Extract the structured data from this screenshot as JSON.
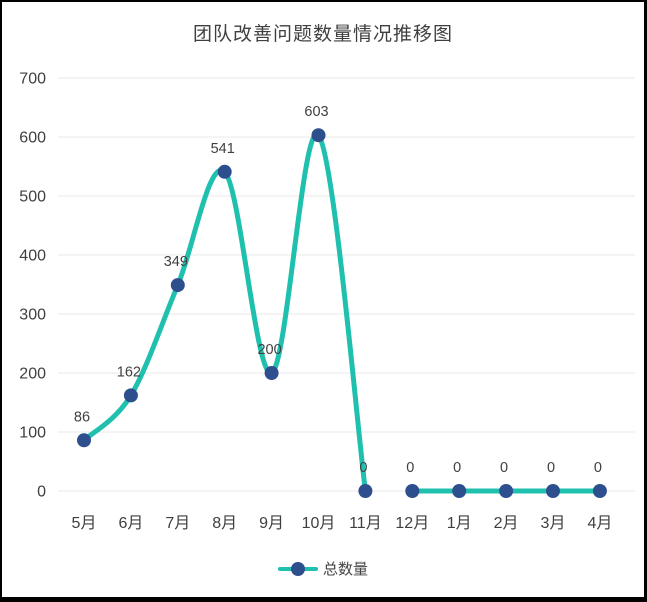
{
  "chart_data": {
    "type": "line",
    "title": "团队改善问题数量情况推移图",
    "categories": [
      "5月",
      "6月",
      "7月",
      "8月",
      "9月",
      "10月",
      "11月",
      "12月",
      "1月",
      "2月",
      "3月",
      "4月"
    ],
    "series": [
      {
        "name": "总数量",
        "values": [
          86,
          162,
          349,
          541,
          200,
          603,
          0,
          0,
          0,
          0,
          0,
          0
        ]
      }
    ],
    "data_labels": [
      "86",
      "162",
      "349",
      "541",
      "200",
      "603",
      "0",
      "0",
      "0",
      "0",
      "0",
      "0"
    ],
    "show_data_labels": true,
    "y_ticks": [
      0,
      100,
      200,
      300,
      400,
      500,
      600,
      700
    ],
    "ylim": [
      0,
      700
    ],
    "xlabel": "",
    "ylabel": "",
    "grid": true,
    "smooth": true,
    "segments": [
      [
        0,
        6
      ],
      [
        7,
        11
      ]
    ],
    "legend_position": "bottom",
    "colors": {
      "line": "#1fc0ad",
      "marker": "#2e4f8e",
      "gridline": "#e8e8e8",
      "tick_text": "#3f3f3f",
      "data_label_text": "#404040",
      "title_text": "#3f3f3f",
      "frame": "#000000",
      "background": "#ffffff"
    }
  },
  "legend": {
    "label": "总数量"
  }
}
